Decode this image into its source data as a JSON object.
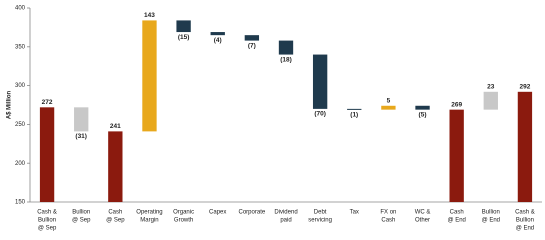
{
  "chart_data": {
    "type": "waterfall",
    "y_label": "A$ Million",
    "categories": [
      [
        "Cash &",
        "Bullion",
        "@ Sep"
      ],
      [
        "Bullion",
        "@ Sep"
      ],
      [
        "Cash",
        "@ Sep"
      ],
      [
        "Operating",
        "Margin"
      ],
      [
        "Organic",
        "Growth"
      ],
      [
        "Capex"
      ],
      [
        "Corporate"
      ],
      [
        "Dividend",
        "paid"
      ],
      [
        "Debt",
        "servicing"
      ],
      [
        "Tax"
      ],
      [
        "FX on",
        "Cash"
      ],
      [
        "WC &",
        "Other"
      ],
      [
        "Cash",
        "@ End"
      ],
      [
        "Bullion",
        "@ End"
      ],
      [
        "Cash &",
        "Bullion",
        "@ End"
      ]
    ],
    "values": [
      272,
      -31,
      241,
      143,
      -15,
      -4,
      -7,
      -18,
      -70,
      -1,
      5,
      -5,
      269,
      23,
      292
    ],
    "value_labels": [
      "272",
      "(31)",
      "241",
      "143",
      "(15)",
      "(4)",
      "(7)",
      "(18)",
      "(70)",
      "(1)",
      "5",
      "(5)",
      "269",
      "23",
      "292"
    ],
    "total": [
      true,
      false,
      true,
      false,
      false,
      false,
      false,
      false,
      false,
      false,
      false,
      false,
      true,
      false,
      true
    ],
    "colors": [
      "#8b1a0e",
      "#c8c8c8",
      "#8b1a0e",
      "#e8a81c",
      "#1f3a4d",
      "#1f3a4d",
      "#1f3a4d",
      "#1f3a4d",
      "#1f3a4d",
      "#1f3a4d",
      "#e8a81c",
      "#1f3a4d",
      "#8b1a0e",
      "#c8c8c8",
      "#8b1a0e"
    ],
    "ylim": [
      150,
      400
    ],
    "yticks": [
      150,
      200,
      250,
      300,
      350,
      400
    ],
    "grid": false
  }
}
